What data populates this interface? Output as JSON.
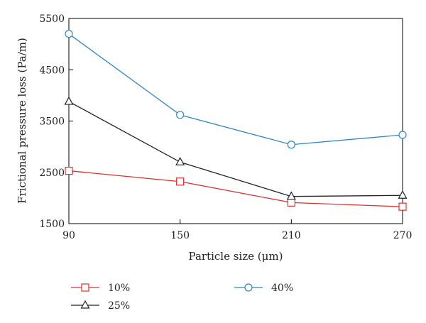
{
  "chart_data": {
    "type": "line",
    "title": "",
    "xlabel": "Particle size (μm)",
    "ylabel": "Frictional pressure loss (Pa/m)",
    "x": [
      90,
      150,
      210,
      270
    ],
    "xlim": [
      90,
      270
    ],
    "ylim": [
      1500,
      5500
    ],
    "xticks": [
      "90",
      "150",
      "210",
      "270"
    ],
    "yticks": [
      "1500",
      "2500",
      "3500",
      "4500",
      "5500"
    ],
    "grid": false,
    "legend_position": "bottom",
    "series": [
      {
        "name": "10%",
        "values": [
          2530,
          2320,
          1910,
          1830
        ],
        "color": "#e03030",
        "marker": "square"
      },
      {
        "name": "25%",
        "values": [
          3880,
          2700,
          2030,
          2050
        ],
        "color": "#222222",
        "marker": "triangle"
      },
      {
        "name": "40%",
        "values": [
          5200,
          3620,
          3040,
          3230
        ],
        "color": "#2f86c4",
        "marker": "circle"
      }
    ]
  }
}
